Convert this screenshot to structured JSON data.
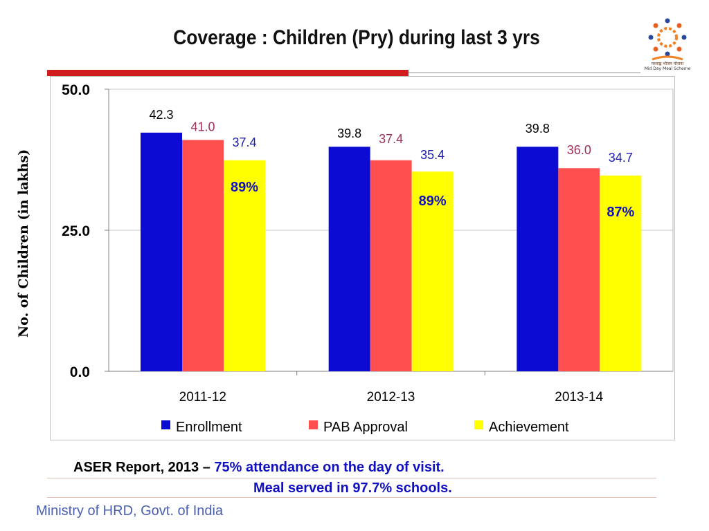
{
  "slide": {
    "title": "Coverage : Children (Pry) during last 3 yrs",
    "logo": {
      "icon": "mid-day-meal-logo-icon",
      "text_hindi": "मध्याह्न भोजन योजना",
      "text_english": "Mid Day Meal Scheme"
    },
    "caption": {
      "prefix": "ASER Report, 2013 – ",
      "line1_highlight": "75% attendance on the day of visit.",
      "line2": "Meal served in 97.7% schools."
    },
    "footer": "Ministry of HRD, Govt. of India"
  },
  "colors": {
    "enrollment": "#0b0bd4",
    "pab": "#ff4f4f",
    "achievement": "#ffff00",
    "enrollment_label": "#000000",
    "pab_label": "#a0305a",
    "achievement_label": "#1a1ab4",
    "percent_label": "#1010c0",
    "title_bar": "#d01e1e"
  },
  "chart_data": {
    "type": "bar",
    "categories": [
      "2011-12",
      "2012-13",
      "2013-14"
    ],
    "series": [
      {
        "name": "Enrollment",
        "values": [
          42.3,
          39.8,
          39.8
        ],
        "labels": [
          "42.3",
          "39.8",
          "39.8"
        ]
      },
      {
        "name": "PAB Approval",
        "values": [
          41.0,
          37.4,
          36.0
        ],
        "labels": [
          "41.0",
          "37.4",
          "36.0"
        ]
      },
      {
        "name": "Achievement",
        "values": [
          37.4,
          35.4,
          34.7
        ],
        "labels": [
          "37.4",
          "35.4",
          "34.7"
        ]
      }
    ],
    "achievement_percent": [
      "89%",
      "89%",
      "87%"
    ],
    "ylabel": "No. of Children (in lakhs)",
    "xlabel": "",
    "ylim": [
      0,
      50
    ],
    "yticks": [
      "0.0",
      "25.0",
      "50.0"
    ],
    "grid": true,
    "legend": "bottom"
  }
}
